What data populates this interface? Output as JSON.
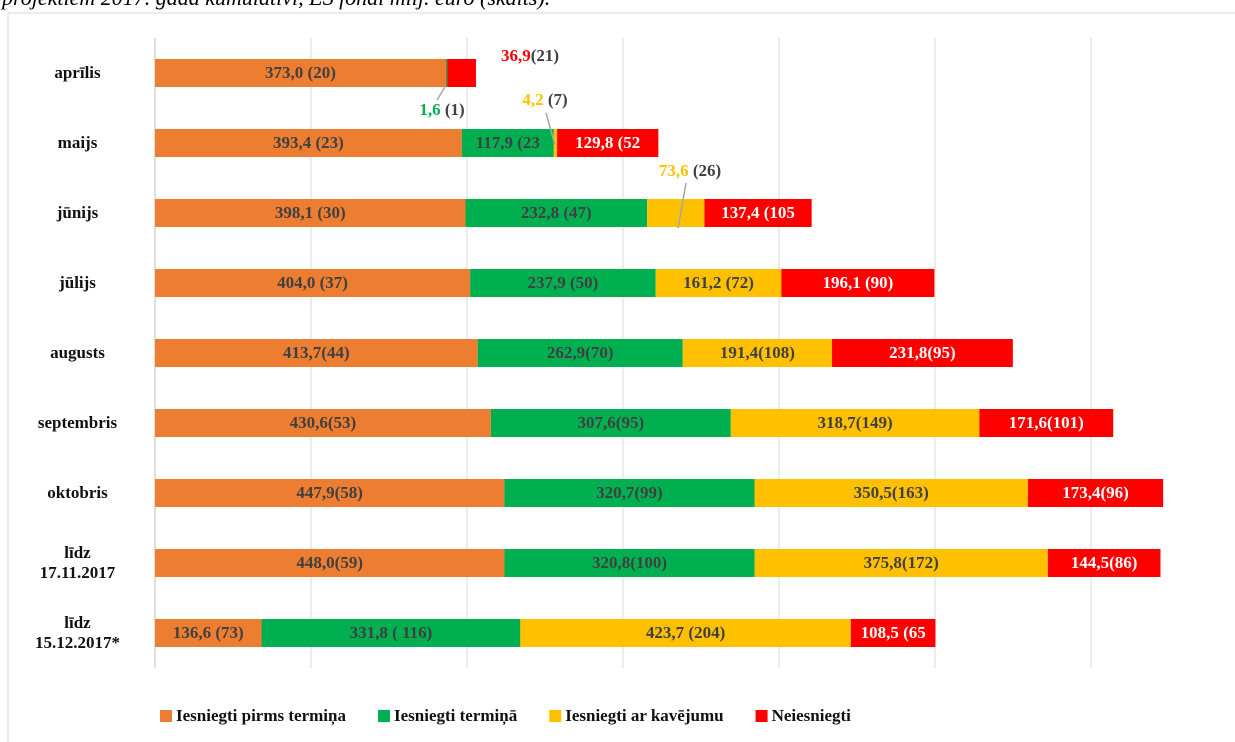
{
  "chart_data": {
    "type": "stacked-bar-horizontal",
    "title": "projektiem 2017. gadā kumulatīvi, ES fondi milj. euro (skaits).",
    "categories": [
      "aprīlis",
      "maijs",
      "jūnijs",
      "jūlijs",
      "augusts",
      "septembris",
      "oktobris",
      "līdz\n17.11.2017",
      "līdz\n15.12.2017*"
    ],
    "xlim": [
      0,
      1400
    ],
    "xticks": [
      0,
      200,
      400,
      600,
      800,
      1000,
      1200
    ],
    "grid": true,
    "legend": "bottom",
    "series": [
      {
        "name": "Iesniegti pirms termiņa",
        "color": "#ED7D31",
        "values": [
          373.0,
          393.4,
          398.1,
          404.0,
          413.7,
          430.6,
          447.9,
          448.0,
          136.6
        ],
        "value_labels": [
          "373,0 (20)",
          "393,4 (23)",
          "398,1 (30)",
          "404,0 (37)",
          "413,7(44)",
          "430,6(53)",
          "447,9(58)",
          "448,0(59)",
          "136,6 (73)"
        ]
      },
      {
        "name": "Iesniegti termiņā",
        "color": "#00B050",
        "values": [
          1.6,
          117.9,
          232.8,
          237.9,
          262.9,
          307.6,
          320.7,
          320.8,
          331.8
        ],
        "value_labels": [
          "1,6 (1)",
          "117,9 (23",
          "232,8 (47)",
          "237,9 (50)",
          "262,9(70)",
          "307,6(95)",
          "320,7(99)",
          "320,8(100)",
          "331,8 ( 116)"
        ]
      },
      {
        "name": "Iesniegti ar kavējumu",
        "color": "#FFC000",
        "values": [
          null,
          4.2,
          73.6,
          161.2,
          191.4,
          318.7,
          350.5,
          375.8,
          423.7
        ],
        "value_labels": [
          null,
          "4,2 (7)",
          "73,6 (26)",
          "161,2 (72)",
          "191,4(108)",
          "318,7(149)",
          "350,5(163)",
          "375,8(172)",
          "423,7 (204)"
        ]
      },
      {
        "name": "Neiesniegti",
        "color": "#FF0000",
        "values": [
          36.9,
          129.8,
          137.4,
          196.1,
          231.8,
          171.6,
          173.4,
          144.5,
          108.5
        ],
        "value_labels": [
          "36,9(21)",
          "129,8 (52",
          "137,4 (105",
          "196,1 (90)",
          "231,8(95)",
          "171,6(101)",
          "173,4(96)",
          "144,5(86)",
          "108,5 (65"
        ]
      }
    ]
  }
}
